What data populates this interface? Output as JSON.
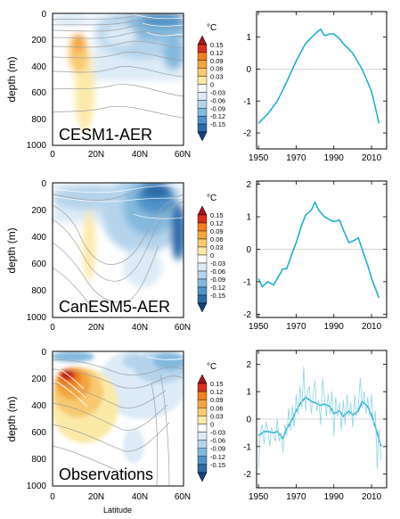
{
  "colorbar": {
    "unit": "°C",
    "labels": [
      "0.15",
      "0.12",
      "0.09",
      "0.06",
      "0.03",
      "0",
      "-0.03",
      "-0.06",
      "-0.09",
      "-0.12",
      "-0.15"
    ],
    "colors": [
      "#a5141e",
      "#d7301f",
      "#f08020",
      "#f5a541",
      "#f8c970",
      "#fbe9a8",
      "#ffffff",
      "#dcebf7",
      "#b5d4ec",
      "#84b9de",
      "#4f93c9",
      "#2c6aa9",
      "#14437e"
    ]
  },
  "shared": {
    "xticks": [
      "0",
      "20N",
      "40N",
      "60N"
    ],
    "yticks": [
      "0",
      "200",
      "400",
      "600",
      "800",
      "1000"
    ],
    "ylabel": "depth (m)",
    "xlabel": "Latitude",
    "ts_xticks": [
      "1950",
      "1970",
      "1990",
      "2010"
    ],
    "ts_color": "#1eaed3"
  },
  "chart_data": [
    {
      "type": "heatmap",
      "panel_label": "CESM1-AER",
      "xlim": [
        0,
        60
      ],
      "ylim": [
        1000,
        0
      ],
      "warm_anomaly": {
        "lat": [
          10,
          20
        ],
        "depth": [
          150,
          800
        ],
        "peak": 0.06
      },
      "cool_anomaly": {
        "lat": [
          30,
          60
        ],
        "depth": [
          0,
          400
        ],
        "peak": -0.15
      }
    },
    {
      "type": "line",
      "xlim": [
        1949,
        2018
      ],
      "ylim": [
        -2.5,
        1.8
      ],
      "yticks": [
        "-2",
        "-1",
        "0",
        "1"
      ],
      "series": [
        {
          "x": [
            1950,
            1955,
            1960,
            1965,
            1970,
            1975,
            1980,
            1983,
            1985,
            1988,
            1990,
            1993,
            1995,
            2000,
            2005,
            2010,
            2014
          ],
          "y": [
            -1.7,
            -1.4,
            -1.0,
            -0.4,
            0.25,
            0.8,
            1.1,
            1.25,
            1.05,
            1.1,
            1.1,
            0.95,
            0.8,
            0.5,
            0.0,
            -0.7,
            -1.7
          ]
        }
      ]
    },
    {
      "type": "heatmap",
      "panel_label": "CanESM5-AER",
      "xlim": [
        0,
        60
      ],
      "ylim": [
        1000,
        0
      ],
      "warm_anomaly": {
        "lat": [
          15,
          22
        ],
        "depth": [
          200,
          650
        ],
        "peak": 0.03
      },
      "cool_anomaly": {
        "lat": [
          0,
          60
        ],
        "depth": [
          0,
          450
        ],
        "peak": -0.15
      }
    },
    {
      "type": "line",
      "xlim": [
        1949,
        2018
      ],
      "ylim": [
        -2.1,
        2.1
      ],
      "yticks": [
        "-2",
        "-1",
        "0",
        "1",
        "2"
      ],
      "series": [
        {
          "x": [
            1950,
            1952,
            1955,
            1958,
            1960,
            1963,
            1965,
            1968,
            1970,
            1973,
            1975,
            1978,
            1980,
            1982,
            1985,
            1988,
            1990,
            1993,
            1995,
            1998,
            2000,
            2003,
            2005,
            2008,
            2010,
            2014
          ],
          "y": [
            -0.9,
            -1.15,
            -1.0,
            -1.1,
            -0.9,
            -0.6,
            -0.6,
            -0.1,
            0.2,
            0.75,
            1.05,
            1.2,
            1.45,
            1.2,
            1.0,
            0.9,
            0.85,
            0.9,
            0.6,
            0.2,
            0.25,
            0.35,
            0.0,
            -0.5,
            -0.9,
            -1.5
          ]
        }
      ]
    },
    {
      "type": "heatmap",
      "panel_label": "Observations",
      "xlabel": "Latitude",
      "xlim": [
        0,
        60
      ],
      "ylim": [
        1000,
        0
      ],
      "warm_anomaly": {
        "lat": [
          0,
          22
        ],
        "depth": [
          80,
          450
        ],
        "peak": 0.15
      },
      "cool_anomaly": {
        "lat": [
          25,
          60
        ],
        "depth": [
          0,
          400
        ],
        "peak": -0.12
      }
    },
    {
      "type": "line",
      "xlim": [
        1949,
        2018
      ],
      "ylim": [
        -2.5,
        2.5
      ],
      "yticks": [
        "-2",
        "-1",
        "0",
        "1",
        "2"
      ],
      "series": [
        {
          "style": "smoothed",
          "x": [
            1950,
            1953,
            1955,
            1958,
            1960,
            1963,
            1965,
            1968,
            1970,
            1972,
            1975,
            1978,
            1980,
            1983,
            1985,
            1988,
            1990,
            1993,
            1995,
            1998,
            2000,
            2003,
            2005,
            2008,
            2010,
            2013,
            2015
          ],
          "y": [
            -0.6,
            -0.45,
            -0.45,
            -0.5,
            -0.45,
            -0.7,
            -0.35,
            0.0,
            0.3,
            0.55,
            0.8,
            0.65,
            0.6,
            0.5,
            0.55,
            0.45,
            0.2,
            0.3,
            0.1,
            0.3,
            0.15,
            0.3,
            0.65,
            0.45,
            0.15,
            -0.5,
            -1.0
          ]
        },
        {
          "style": "annual",
          "x": [
            1950,
            1951,
            1952,
            1953,
            1954,
            1955,
            1956,
            1957,
            1958,
            1959,
            1960,
            1961,
            1962,
            1963,
            1964,
            1965,
            1966,
            1967,
            1968,
            1969,
            1970,
            1971,
            1972,
            1973,
            1974,
            1975,
            1976,
            1977,
            1978,
            1979,
            1980,
            1981,
            1982,
            1983,
            1984,
            1985,
            1986,
            1987,
            1988,
            1989,
            1990,
            1991,
            1992,
            1993,
            1994,
            1995,
            1996,
            1997,
            1998,
            1999,
            2000,
            2001,
            2002,
            2003,
            2004,
            2005,
            2006,
            2007,
            2008,
            2009,
            2010,
            2011,
            2012,
            2013,
            2014,
            2015
          ],
          "y": [
            -1.8,
            -0.5,
            -0.2,
            -0.9,
            -0.1,
            -0.4,
            -1.0,
            -0.3,
            -0.6,
            -0.8,
            0.0,
            -0.8,
            -0.5,
            -1.2,
            -0.2,
            -0.6,
            0.4,
            -0.4,
            0.5,
            -0.3,
            0.9,
            0.2,
            1.2,
            0.4,
            1.9,
            0.3,
            1.0,
            1.2,
            0.2,
            0.9,
            1.4,
            0.3,
            0.7,
            -0.2,
            1.5,
            0.8,
            0.1,
            0.9,
            0.2,
            1.0,
            -0.6,
            0.8,
            0.1,
            0.6,
            -0.4,
            0.7,
            -0.2,
            0.9,
            0.1,
            0.6,
            -0.3,
            0.9,
            0.1,
            0.5,
            1.5,
            0.4,
            1.0,
            0.2,
            0.8,
            0.1,
            0.9,
            -0.2,
            0.3,
            -1.8,
            -0.4,
            -1.5
          ]
        }
      ]
    }
  ]
}
